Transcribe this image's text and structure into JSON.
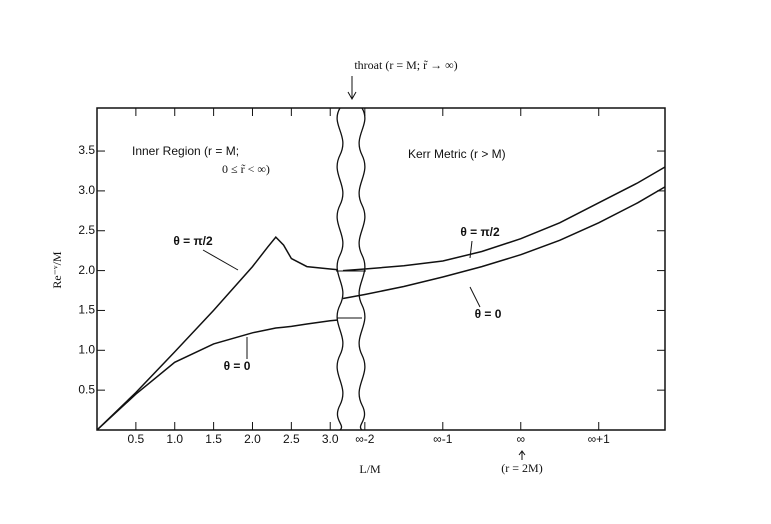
{
  "chart_data": [
    {
      "type": "line",
      "title": "throat (r = M; r̃ → ∞)",
      "ylabel": "Re⁻ᵛ/M",
      "annotations": [
        "Inner Region (r = M;",
        "0 ≤ r̃ < ∞)"
      ],
      "x": [
        0,
        0.5,
        1.0,
        1.5,
        2.0,
        2.2,
        2.3,
        2.4,
        2.5,
        2.7,
        3.0,
        3.1
      ],
      "series": [
        {
          "name": "θ = π/2",
          "color": "#111111",
          "values": [
            0,
            0.47,
            0.98,
            1.5,
            2.05,
            2.3,
            2.42,
            2.32,
            2.15,
            2.05,
            2.02,
            2.01
          ]
        },
        {
          "name": "θ = 0",
          "color": "#111111",
          "values": [
            0,
            0.45,
            0.85,
            1.08,
            1.22,
            1.26,
            1.28,
            1.29,
            1.3,
            1.33,
            1.37,
            1.38
          ]
        }
      ],
      "xlim": [
        0,
        3.1
      ],
      "ylim": [
        0,
        4.04
      ],
      "xticks": [
        0.5,
        {
          "value": 1,
          "label": "1.0"
        },
        1.5,
        {
          "value": 2,
          "label": "2.0"
        },
        2.5,
        {
          "value": 3,
          "label": "3.0"
        }
      ],
      "yticks": [
        0.5,
        {
          "value": 1,
          "label": "1.0"
        },
        1.5,
        {
          "value": 2,
          "label": "2.0"
        },
        2.5,
        {
          "value": 3,
          "label": "3.0"
        },
        3.5
      ]
    },
    {
      "type": "line",
      "xlabel": "L/M",
      "annotations": [
        "Kerr Metric (r > M)",
        "(r = 2M)"
      ],
      "x": [
        -2.28,
        -2,
        -1.5,
        -1,
        -0.5,
        0,
        0.5,
        1,
        1.5,
        1.85
      ],
      "series": [
        {
          "name": "θ = π/2",
          "color": "#111111",
          "values": [
            2.0,
            2.02,
            2.06,
            2.12,
            2.24,
            2.4,
            2.6,
            2.85,
            3.1,
            3.3
          ]
        },
        {
          "name": "θ = 0",
          "color": "#111111",
          "values": [
            1.65,
            1.7,
            1.8,
            1.92,
            2.05,
            2.2,
            2.38,
            2.6,
            2.85,
            3.05
          ]
        }
      ],
      "xlim": [
        -2.28,
        1.85
      ],
      "ylim": [
        0,
        4.04
      ],
      "xticks": [
        {
          "value": -2,
          "label": "∞-2"
        },
        {
          "value": -1,
          "label": "∞-1"
        },
        {
          "value": 0,
          "label": "∞"
        },
        {
          "value": 1,
          "label": "∞+1"
        }
      ]
    }
  ]
}
